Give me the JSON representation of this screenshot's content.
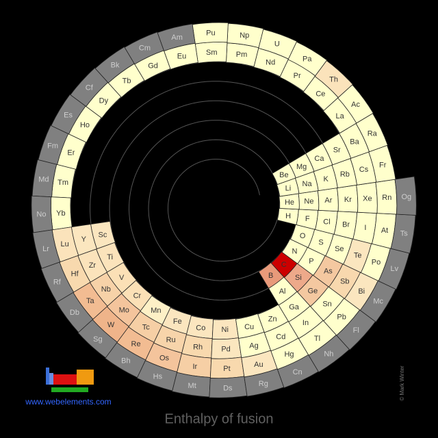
{
  "title": "Enthalpy of fusion",
  "website": "www.webelements.com",
  "credit": "© Mark Winter",
  "elements": {
    "symbols": [
      "H",
      "He",
      "Li",
      "Be",
      "B",
      "C",
      "N",
      "O",
      "F",
      "Ne",
      "Na",
      "Mg",
      "Al",
      "Si",
      "P",
      "S",
      "Cl",
      "Ar",
      "K",
      "Ca",
      "Sc",
      "Ti",
      "V",
      "Cr",
      "Mn",
      "Fe",
      "Co",
      "Ni",
      "Cu",
      "Zn",
      "Ga",
      "Ge",
      "As",
      "Se",
      "Br",
      "Kr",
      "Rb",
      "Sr",
      "Y",
      "Zr",
      "Nb",
      "Mo",
      "Tc",
      "Ru",
      "Rh",
      "Pd",
      "Ag",
      "Cd",
      "In",
      "Sn",
      "Sb",
      "Te",
      "I",
      "Xe",
      "Cs",
      "Ba",
      "La",
      "Ce",
      "Pr",
      "Nd",
      "Pm",
      "Sm",
      "Eu",
      "Gd",
      "Tb",
      "Dy",
      "Ho",
      "Er",
      "Tm",
      "Yb",
      "Lu",
      "Hf",
      "Ta",
      "W",
      "Re",
      "Os",
      "Ir",
      "Pt",
      "Au",
      "Hg",
      "Tl",
      "Pb",
      "Bi",
      "Po",
      "At",
      "Rn",
      "Fr",
      "Ra",
      "Ac",
      "Th",
      "Pa",
      "U",
      "Np",
      "Pu",
      "Am",
      "Cm",
      "Bk",
      "Cf",
      "Es",
      "Fm",
      "Md",
      "No",
      "Lr",
      "Rf",
      "Db",
      "Sg",
      "Bh",
      "Hs",
      "Mt",
      "Ds",
      "Rg",
      "Cn",
      "Nh",
      "Fl",
      "Mc",
      "Lv",
      "Ts",
      "Og"
    ],
    "colors": [
      "#ffffcc",
      "#ffffcc",
      "#ffffcc",
      "#ffffcc",
      "#e89a7a",
      "#cc0000",
      "#ffffcc",
      "#ffffcc",
      "#ffffcc",
      "#ffffcc",
      "#ffffcc",
      "#ffffcc",
      "#ffffcc",
      "#eda98a",
      "#ffffcc",
      "#ffffcc",
      "#ffffcc",
      "#ffffcc",
      "#ffffcc",
      "#ffffcc",
      "#fbe6bf",
      "#fbe3bb",
      "#fbe0b6",
      "#fbe0b6",
      "#fdf0c6",
      "#fbe6bf",
      "#fbe6bf",
      "#fbe6bf",
      "#ffffcc",
      "#ffffcc",
      "#ffffcc",
      "#f4c8a0",
      "#f4c8a0",
      "#ffffcc",
      "#ffffcc",
      "#ffffcc",
      "#ffffcc",
      "#ffffcc",
      "#fbe6bf",
      "#fbe3bb",
      "#f7d2a8",
      "#f4c49c",
      "#f6cfa5",
      "#f7d4aa",
      "#f8d9ae",
      "#fbe6bf",
      "#ffffcc",
      "#ffffcc",
      "#ffffcc",
      "#ffffcc",
      "#f8d8ae",
      "#fbe6bf",
      "#ffffcc",
      "#ffffcc",
      "#ffffcc",
      "#ffffcc",
      "#ffffcc",
      "#ffffcc",
      "#ffffcc",
      "#ffffcc",
      "#ffffcc",
      "#ffffcc",
      "#ffffcc",
      "#ffffcc",
      "#ffffcc",
      "#ffffcc",
      "#ffffcc",
      "#ffffcc",
      "#ffffcc",
      "#ffffcc",
      "#fbe3bb",
      "#f8d9ae",
      "#f2bc92",
      "#efb48a",
      "#f2bc92",
      "#f4c49c",
      "#f6cfa5",
      "#f8d9ae",
      "#fbe6bf",
      "#ffffcc",
      "#ffffcc",
      "#ffffcc",
      "#fbe6bf",
      "#ffffcc",
      "#ffffcc",
      "#ffffcc",
      "#ffffcc",
      "#ffffcc",
      "#ffffcc",
      "#fbe3bb",
      "#ffffcc",
      "#ffffcc",
      "#ffffcc",
      "#ffffcc",
      "#808080",
      "#808080",
      "#808080",
      "#808080",
      "#808080",
      "#808080",
      "#808080",
      "#808080",
      "#808080",
      "#808080",
      "#808080",
      "#808080",
      "#808080",
      "#808080",
      "#808080",
      "#808080",
      "#808080",
      "#808080",
      "#808080",
      "#808080",
      "#808080",
      "#808080",
      "#808080",
      "#808080"
    ]
  }
}
